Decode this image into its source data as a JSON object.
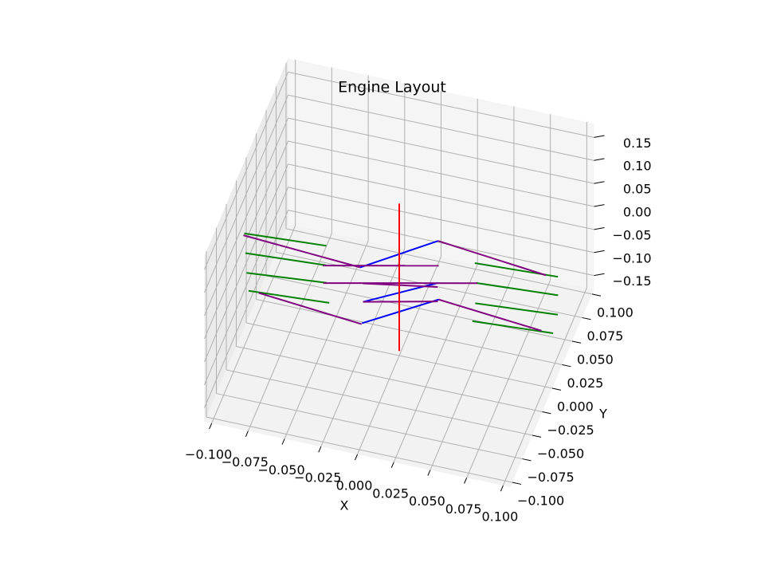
{
  "chart_data": {
    "type": "line3d",
    "title": "Engine Layout",
    "xlabel": "X",
    "ylabel": "Y",
    "xlim": [
      -0.105,
      0.105
    ],
    "ylim": [
      -0.105,
      0.105
    ],
    "zlim": [
      -0.18,
      0.18
    ],
    "xticks": [
      {
        "value": -0.1,
        "label": "−0.100"
      },
      {
        "value": -0.075,
        "label": "−0.075"
      },
      {
        "value": -0.05,
        "label": "−0.050"
      },
      {
        "value": -0.025,
        "label": "−0.025"
      },
      {
        "value": 0,
        "label": "0.000"
      },
      {
        "value": 0.025,
        "label": "0.025"
      },
      {
        "value": 0.05,
        "label": "0.050"
      },
      {
        "value": 0.075,
        "label": "0.075"
      },
      {
        "value": 0.1,
        "label": "0.100"
      }
    ],
    "yticks": [
      {
        "value": -0.1,
        "label": "−0.100"
      },
      {
        "value": -0.075,
        "label": "−0.075"
      },
      {
        "value": -0.05,
        "label": "−0.050"
      },
      {
        "value": -0.025,
        "label": "−0.025"
      },
      {
        "value": 0,
        "label": "0.000"
      },
      {
        "value": 0.025,
        "label": "0.025"
      },
      {
        "value": 0.05,
        "label": "0.050"
      },
      {
        "value": 0.075,
        "label": "0.075"
      },
      {
        "value": 0.1,
        "label": "0.100"
      }
    ],
    "zticks": [
      {
        "value": -0.15,
        "label": "−0.15"
      },
      {
        "value": -0.1,
        "label": "−0.10"
      },
      {
        "value": -0.05,
        "label": "−0.05"
      },
      {
        "value": 0,
        "label": "0.00"
      },
      0.05,
      {
        "value": 0.1,
        "label": "0.10"
      },
      0.15
    ],
    "grid": true,
    "lines": [
      {
        "color": "#008000",
        "segments": [
          [
            -0.108,
            0.006,
            0,
            -0.053,
            0.011,
            0
          ],
          [
            -0.102,
            -0.013,
            0,
            -0.048,
            -0.008,
            0
          ],
          [
            -0.096,
            -0.032,
            0,
            -0.043,
            -0.025,
            0
          ],
          [
            -0.09,
            -0.049,
            0,
            -0.036,
            -0.044,
            0
          ],
          [
            0.045,
            0.025,
            0,
            0.101,
            0.029,
            0
          ],
          [
            0.051,
            0.006,
            0,
            0.106,
            0.011,
            0
          ],
          [
            0.056,
            -0.014,
            0,
            0.111,
            -0.008,
            0
          ],
          [
            0.059,
            -0.032,
            0,
            0.113,
            -0.027,
            0
          ]
        ]
      },
      {
        "color": "#0000ff",
        "segments": [
          [
            -0.026,
            -0.003,
            0,
            0.016,
            0.039,
            0
          ],
          [
            -0.015,
            -0.036,
            0,
            0.027,
            -0.002,
            0
          ],
          [
            -0.01,
            -0.057,
            0,
            0.032,
            -0.018,
            0
          ]
        ]
      },
      {
        "color": "#800080",
        "segments": [
          [
            -0.108,
            0.004,
            0,
            -0.026,
            -0.003,
            0
          ],
          [
            -0.05,
            -0.009,
            0,
            0.023,
            0.015,
            0
          ],
          [
            0.016,
            0.039,
            0,
            0.093,
            0.028,
            0
          ],
          [
            -0.045,
            -0.026,
            0,
            0.052,
            0.006,
            0
          ],
          [
            -0.015,
            -0.036,
            0,
            0.032,
            -0.02,
            0
          ],
          [
            -0.083,
            -0.049,
            0,
            -0.01,
            -0.058,
            0
          ],
          [
            0.032,
            -0.018,
            0,
            0.105,
            -0.027,
            0
          ],
          [
            -0.02,
            -0.018,
            0,
            0.028,
            -0.006,
            0
          ]
        ]
      },
      {
        "color": "#ff0000",
        "segments": [
          [
            0,
            0,
            -0.17,
            0,
            0,
            0.15
          ]
        ]
      }
    ]
  }
}
